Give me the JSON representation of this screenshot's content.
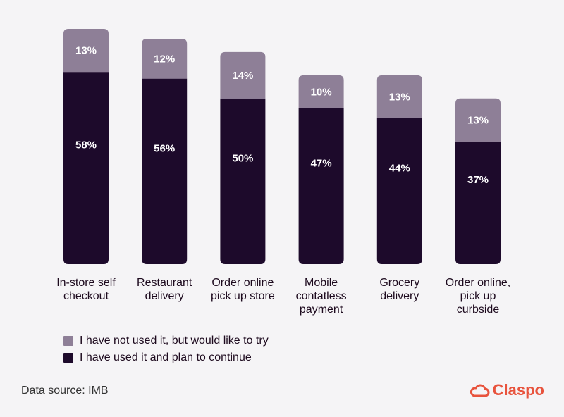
{
  "chart_data": {
    "type": "bar",
    "stacked": true,
    "categories": [
      [
        "In-store self",
        "checkout"
      ],
      [
        "Restaurant",
        "delivery"
      ],
      [
        "Order online",
        "pick up store"
      ],
      [
        "Mobile",
        "contatless",
        "payment"
      ],
      [
        "Grocery",
        "delivery"
      ],
      [
        "Order online,",
        "pick up",
        "curbside"
      ]
    ],
    "series": [
      {
        "name": "I have used it and plan to continue",
        "values": [
          58,
          56,
          50,
          47,
          44,
          37
        ],
        "color": "#1d0a2b"
      },
      {
        "name": "I have not used it, but would like to try",
        "values": [
          13,
          12,
          14,
          10,
          13,
          13
        ],
        "color": "#8e7f97"
      }
    ],
    "data_labels": [
      [
        "58%",
        "56%",
        "50%",
        "47%",
        "44%",
        "37%"
      ],
      [
        "13%",
        "12%",
        "14%",
        "10%",
        "13%",
        "13%"
      ]
    ],
    "legend_order": [
      1,
      0
    ],
    "legend_position": "bottom-left",
    "ylim": [
      0,
      71
    ],
    "grid": false
  },
  "footer": {
    "source": "Data source: IMB",
    "brand": "Claspo"
  },
  "colors": {
    "accent": "#e8533d",
    "background": "#f5f4f6"
  }
}
